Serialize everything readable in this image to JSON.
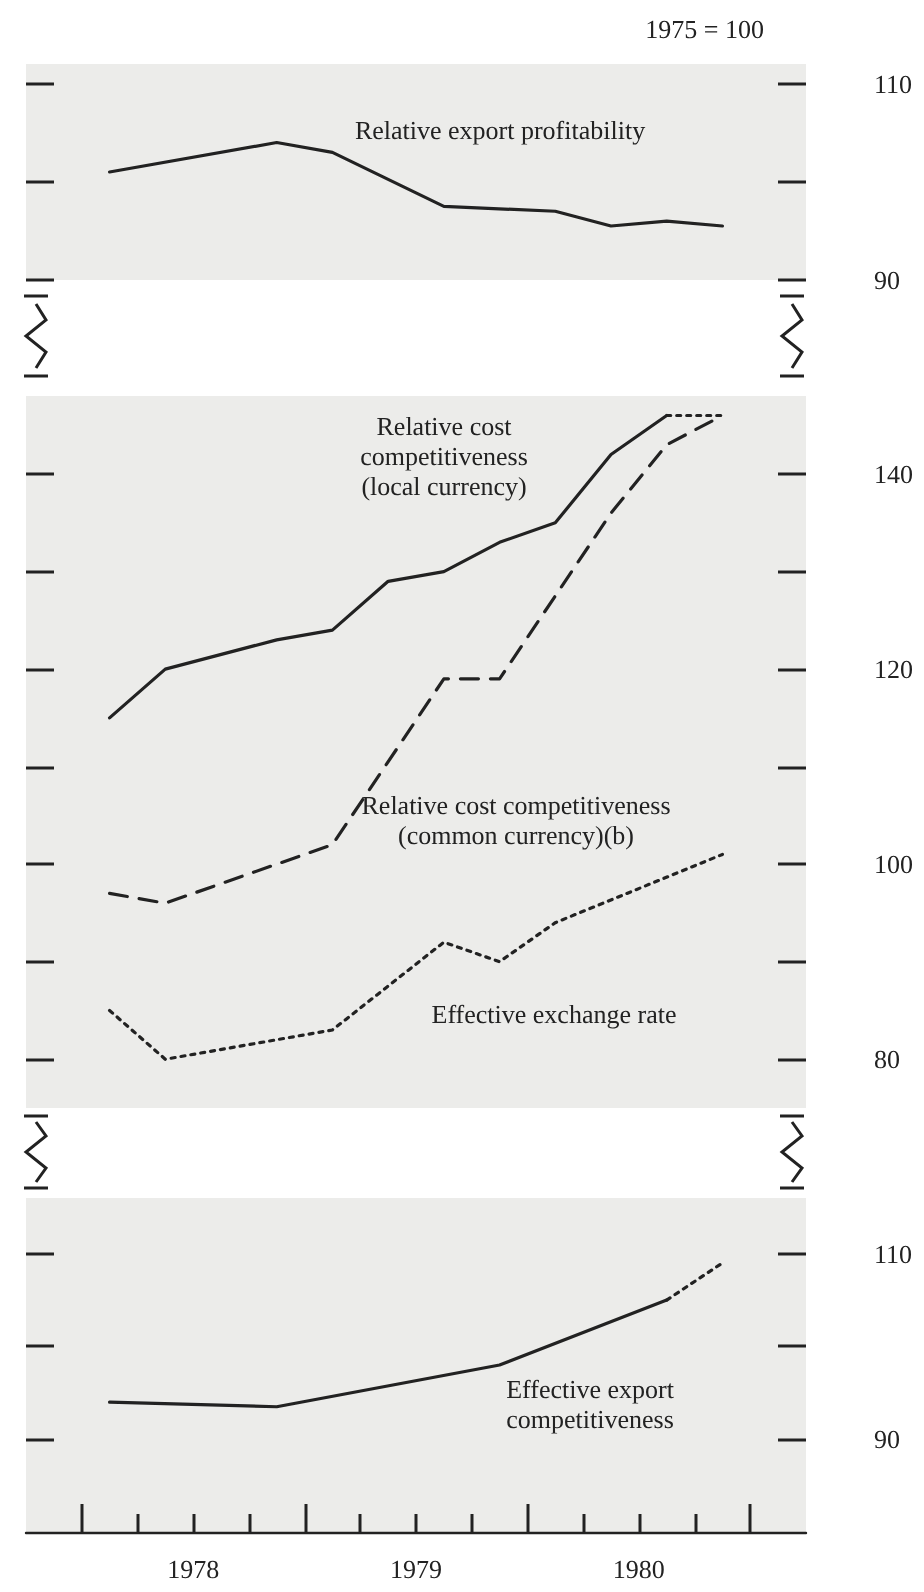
{
  "chart_data": [
    {
      "type": "line",
      "annotations": [
        "1975 = 100"
      ],
      "xlim": [
        1977.75,
        1981.25
      ],
      "ylim": [
        90,
        112
      ],
      "yticks": [
        90,
        {
          "value": 100,
          "label": null
        },
        110
      ],
      "tick_labels": "y",
      "grid": false,
      "legend": false,
      "series": [
        {
          "name": "Relative export profitability",
          "color": "#222222",
          "line_style": "solid",
          "x": [
            1978.125,
            1978.875,
            1979.125,
            1979.625,
            1980.125,
            1980.375,
            1980.625,
            1980.875
          ],
          "values": [
            101,
            104,
            103,
            97.5,
            97,
            95.5,
            96,
            95.5
          ]
        }
      ]
    },
    {
      "type": "line",
      "xlim": [
        1977.75,
        1981.25
      ],
      "ylim": [
        75,
        148
      ],
      "yticks": [
        80,
        {
          "value": 90,
          "label": null
        },
        100,
        {
          "value": 110,
          "label": null
        },
        120,
        {
          "value": 130,
          "label": null
        },
        140
      ],
      "tick_labels": "y",
      "grid": false,
      "legend": false,
      "series": [
        {
          "name": "Relative cost\ncompetitiveness\n(local currency)",
          "color": "#222222",
          "line_style": "solid",
          "x": [
            1978.125,
            1978.375,
            1978.875,
            1979.125,
            1979.375,
            1979.625,
            1979.875,
            1980.125,
            1980.375,
            1980.625
          ],
          "values": [
            115,
            120,
            123,
            124,
            129,
            130,
            133,
            135,
            142,
            146
          ]
        },
        {
          "color": "#222222",
          "line_style": "dotted",
          "x": [
            1980.625,
            1980.875
          ],
          "values": [
            146,
            146
          ]
        },
        {
          "name": "Relative cost competitiveness\n(common currency)(b)",
          "color": "#222222",
          "line_style": "dashed",
          "x": [
            1978.125,
            1978.375,
            1979.125,
            1979.625,
            1979.875,
            1980.375,
            1980.625,
            1980.875
          ],
          "values": [
            97,
            96,
            102,
            119,
            119,
            136,
            143,
            146
          ]
        },
        {
          "name": "Effective exchange rate",
          "color": "#222222",
          "line_style": "dotted",
          "x": [
            1978.125,
            1978.375,
            1979.125,
            1979.625,
            1979.875,
            1980.125,
            1980.875
          ],
          "values": [
            85,
            80,
            83,
            92,
            90,
            94,
            101
          ]
        }
      ]
    },
    {
      "type": "line",
      "xlim": [
        1977.75,
        1981.25
      ],
      "ylim": [
        80,
        116
      ],
      "yticks": [
        90,
        {
          "value": 100,
          "label": null
        },
        110
      ],
      "xticks": [
        {
          "value": 1978,
          "label": null
        },
        {
          "value": 1978.25,
          "label": null
        },
        {
          "value": 1978.5,
          "label": "1978"
        },
        {
          "value": 1978.75,
          "label": null
        },
        {
          "value": 1979,
          "label": null
        },
        {
          "value": 1979.25,
          "label": null
        },
        {
          "value": 1979.5,
          "label": "1979"
        },
        {
          "value": 1979.75,
          "label": null
        },
        {
          "value": 1980,
          "label": null
        },
        {
          "value": 1980.25,
          "label": null
        },
        {
          "value": 1980.5,
          "label": "1980"
        },
        {
          "value": 1980.75,
          "label": null
        },
        {
          "value": 1981,
          "label": null
        }
      ],
      "grid": false,
      "legend": false,
      "series": [
        {
          "name": "Effective export\ncompetitiveness",
          "color": "#222222",
          "line_style": "solid",
          "x": [
            1978.125,
            1978.875,
            1979.875,
            1980.625
          ],
          "values": [
            94,
            93.5,
            98,
            105
          ]
        },
        {
          "color": "#222222",
          "line_style": "dotted",
          "x": [
            1980.625,
            1980.875
          ],
          "values": [
            105,
            109
          ]
        }
      ]
    }
  ]
}
